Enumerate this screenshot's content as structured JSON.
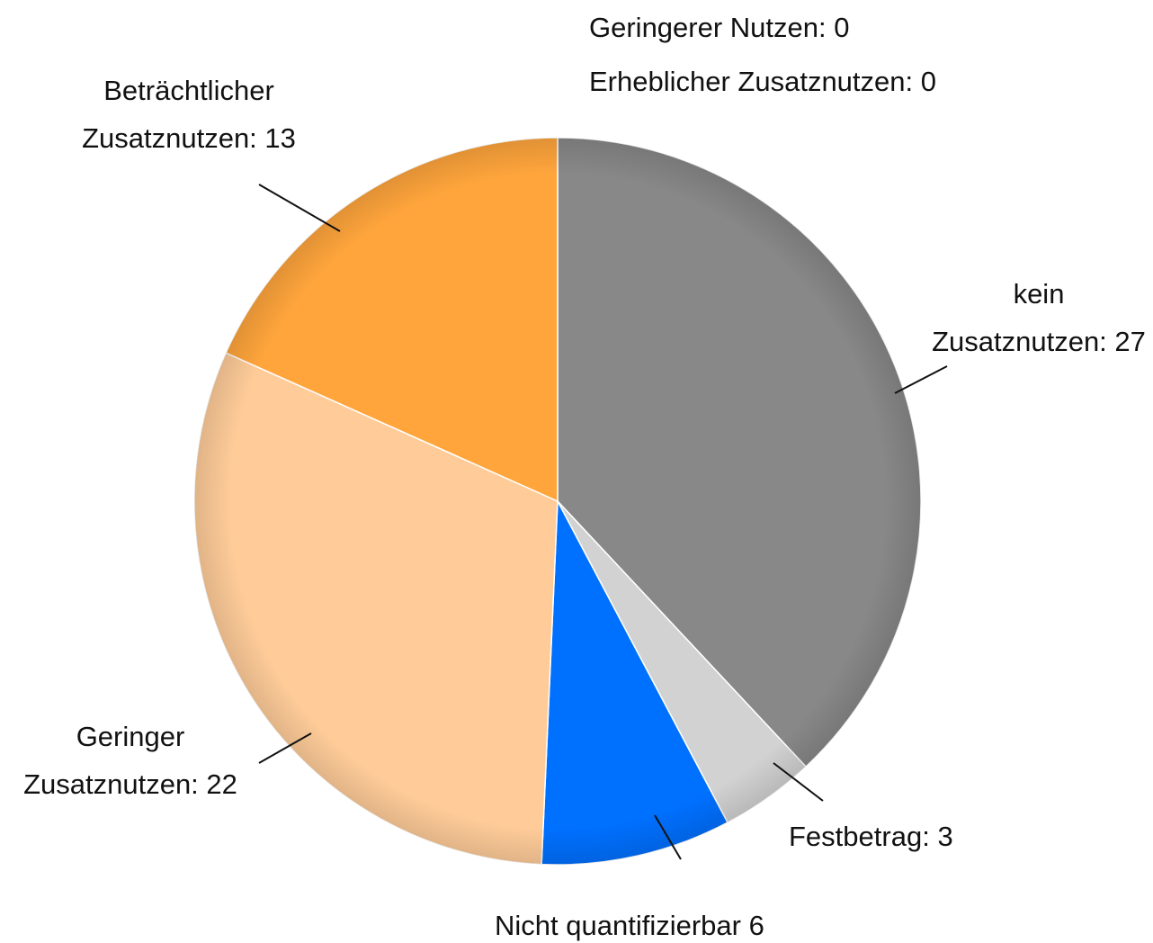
{
  "chart_data": {
    "type": "pie",
    "categories": [
      "kein Zusatznutzen:",
      "Festbetrag:",
      "Nicht quantifizierbar",
      "Geringer Zusatznutzen:",
      "Beträchtlicher Zusatznutzen:",
      "Erheblicher Zusatznutzen:",
      "Geringerer Nutzen:"
    ],
    "values": [
      27,
      3,
      6,
      22,
      13,
      0,
      0
    ],
    "colors": [
      "#888888",
      "#d2d2d2",
      "#0070ff",
      "#ffcc99",
      "#ffa53c",
      "#c0504d",
      "#9bbb59"
    ]
  }
}
